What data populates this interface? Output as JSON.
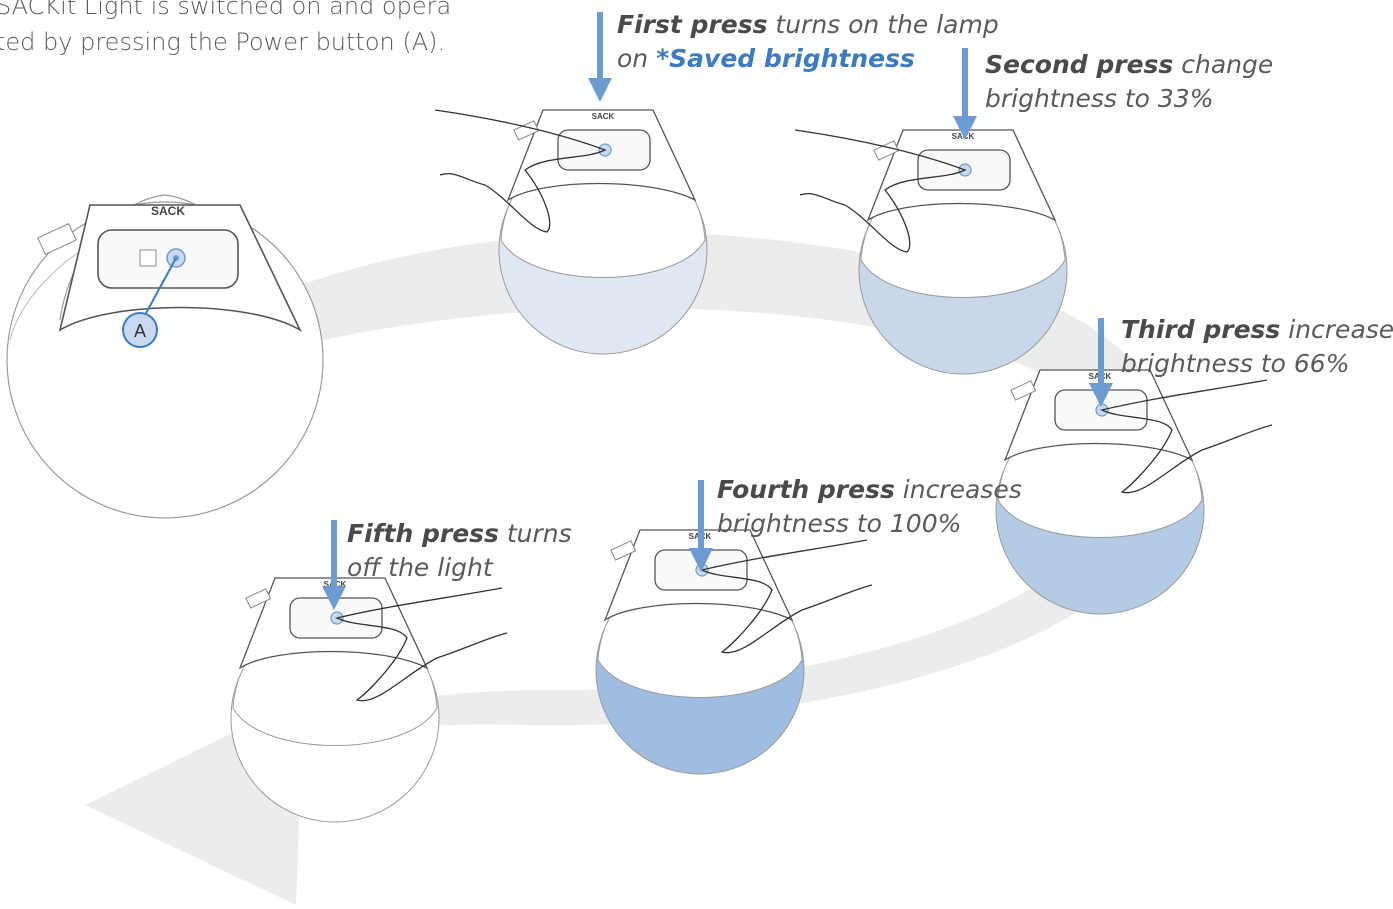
{
  "intro": {
    "line1": "SACKit Light is switched on and opera",
    "line2": "ted by pressing the Power button (A)."
  },
  "brand": "SACK",
  "callout_label": "A",
  "steps": [
    {
      "bold": "First press",
      "text1": " turns on the lamp",
      "text2": "on ",
      "highlight": "*Saved brightness"
    },
    {
      "bold": "Second press",
      "text1": " change",
      "text2": "brightness to 33%"
    },
    {
      "bold": "Third press",
      "text1": " increases",
      "text2": "brightness to 66%"
    },
    {
      "bold": "Fourth press",
      "text1": " increases",
      "text2": "brightness to 100%"
    },
    {
      "bold": "Fifth press",
      "text1": " turns",
      "text2": "off the light"
    }
  ],
  "colors": {
    "arrow_blue": "#6b9bd0",
    "cycle_arrow": "#ececec",
    "step1_fill": "#dfe8f2",
    "step2_fill": "#c8d8ea",
    "step3_fill": "#b3cbe5",
    "step4_fill": "#9fbde0",
    "step5_fill": "#ffffff",
    "highlight": "#3d7bc0"
  }
}
